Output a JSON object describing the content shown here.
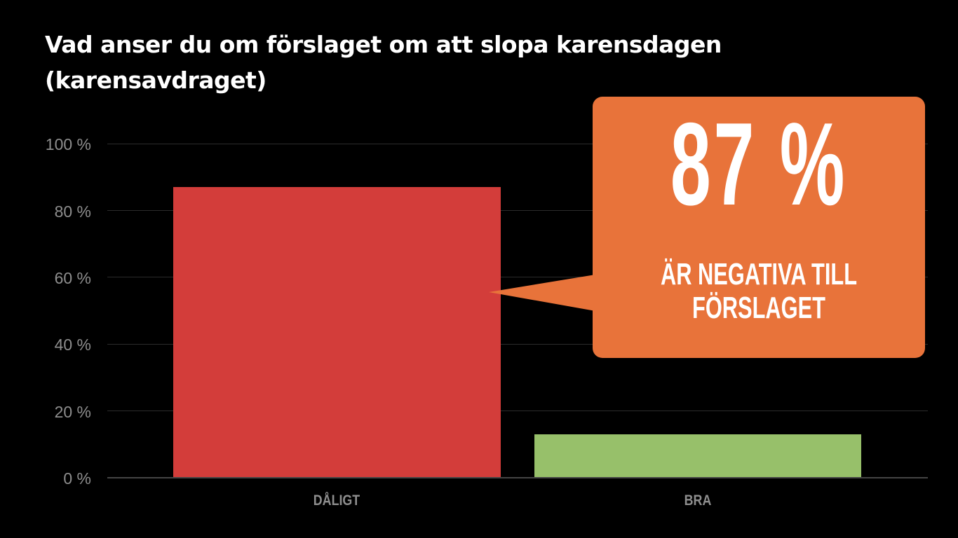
{
  "title": "Vad anser du om förslaget om att slopa karensdagen (karensavdraget)",
  "callout": {
    "value": "87 %",
    "text": "ÄR NEGATIVA TILL FÖRSLAGET",
    "color": "#e8733a"
  },
  "y_ticks": [
    "100 %",
    "80 %",
    "60 %",
    "40 %",
    "20 %",
    "0 %"
  ],
  "x_labels": [
    "DÅLIGT",
    "BRA"
  ],
  "colors": {
    "bar_daligt": "#d33d3a",
    "bar_bra": "#97c06a",
    "background": "#000000"
  },
  "chart_data": {
    "type": "bar",
    "title": "Vad anser du om förslaget om att slopa karensdagen (karensavdraget)",
    "categories": [
      "DÅLIGT",
      "BRA"
    ],
    "values": [
      87,
      13
    ],
    "xlabel": "",
    "ylabel": "",
    "ylim": [
      0,
      100
    ],
    "y_tick_labels": [
      "0 %",
      "20 %",
      "40 %",
      "60 %",
      "80 %",
      "100 %"
    ],
    "grid": true,
    "legend": null,
    "annotations": [
      {
        "text": "87 % ÄR NEGATIVA TILL FÖRSLAGET",
        "points_to": "DÅLIGT"
      }
    ]
  }
}
